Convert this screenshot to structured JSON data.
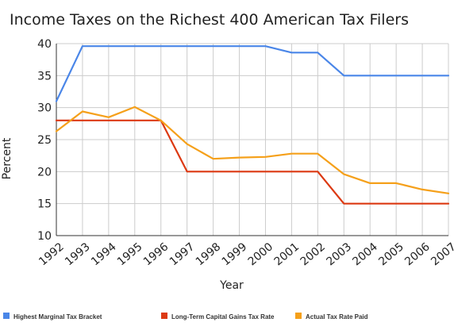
{
  "chart_data": {
    "type": "line",
    "title": "Income Taxes on the Richest 400 American Tax Filers",
    "xlabel": "Year",
    "ylabel": "Percent",
    "ylim": [
      10,
      40
    ],
    "yticks": [
      10,
      15,
      20,
      25,
      30,
      35,
      40
    ],
    "grid": true,
    "legend_position": "bottom",
    "categories": [
      "1992",
      "1993",
      "1994",
      "1995",
      "1996",
      "1997",
      "1998",
      "1999",
      "2000",
      "2001",
      "2002",
      "2003",
      "2004",
      "2005",
      "2006",
      "2007"
    ],
    "series": [
      {
        "name": "Highest Marginal Tax Bracket",
        "color": "#4a86e8",
        "values": [
          31,
          39.6,
          39.6,
          39.6,
          39.6,
          39.6,
          39.6,
          39.6,
          39.6,
          38.6,
          38.6,
          35,
          35,
          35,
          35,
          35
        ]
      },
      {
        "name": "Long-Term Capital Gains Tax Rate",
        "color": "#dc3912",
        "values": [
          28,
          28,
          28,
          28,
          28,
          20,
          20,
          20,
          20,
          20,
          20,
          15,
          15,
          15,
          15,
          15
        ]
      },
      {
        "name": "Actual Tax Rate Paid",
        "color": "#f5a01a",
        "values": [
          26.3,
          29.4,
          28.5,
          30.1,
          28,
          24.3,
          22,
          22.2,
          22.3,
          22.8,
          22.8,
          19.6,
          18.2,
          18.2,
          17.2,
          16.6
        ]
      }
    ]
  }
}
